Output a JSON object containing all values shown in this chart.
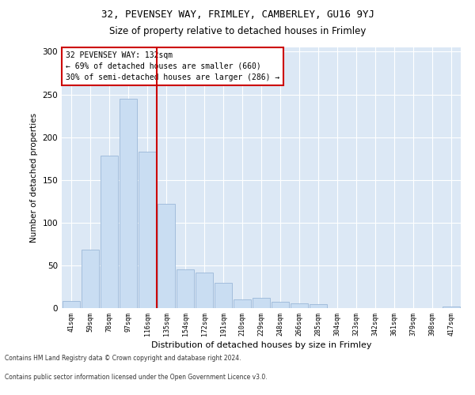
{
  "title1": "32, PEVENSEY WAY, FRIMLEY, CAMBERLEY, GU16 9YJ",
  "title2": "Size of property relative to detached houses in Frimley",
  "xlabel": "Distribution of detached houses by size in Frimley",
  "ylabel": "Number of detached properties",
  "categories": [
    "41sqm",
    "59sqm",
    "78sqm",
    "97sqm",
    "116sqm",
    "135sqm",
    "154sqm",
    "172sqm",
    "191sqm",
    "210sqm",
    "229sqm",
    "248sqm",
    "266sqm",
    "285sqm",
    "304sqm",
    "323sqm",
    "342sqm",
    "361sqm",
    "379sqm",
    "398sqm",
    "417sqm"
  ],
  "values": [
    8,
    68,
    178,
    245,
    183,
    122,
    45,
    42,
    30,
    10,
    12,
    7,
    6,
    5,
    0,
    0,
    0,
    0,
    0,
    0,
    2
  ],
  "bar_color": "#c9ddf2",
  "bar_edge_color": "#9bb8d8",
  "vline_x": 4.5,
  "vline_color": "#cc0000",
  "annotation_text": "32 PEVENSEY WAY: 132sqm\n← 69% of detached houses are smaller (660)\n30% of semi-detached houses are larger (286) →",
  "annotation_box_color": "#ffffff",
  "annotation_box_edge": "#cc0000",
  "footer1": "Contains HM Land Registry data © Crown copyright and database right 2024.",
  "footer2": "Contains public sector information licensed under the Open Government Licence v3.0.",
  "ylim": [
    0,
    305
  ],
  "background_color": "#dce8f5",
  "fig_bg": "#ffffff"
}
